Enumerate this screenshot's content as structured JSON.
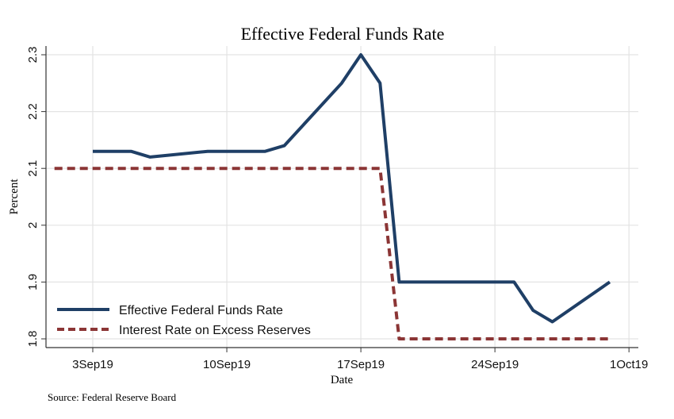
{
  "chart_data": {
    "type": "line",
    "title": "Effective Federal Funds Rate",
    "xlabel": "Date",
    "ylabel": "Percent",
    "source": "Source: Federal Reserve Board",
    "grid": true,
    "legend_position": "bottom-left",
    "ylim": [
      1.8,
      2.3
    ],
    "yticks": [
      1.8,
      1.9,
      2.0,
      2.1,
      2.2,
      2.3
    ],
    "ytick_labels": [
      "1.8",
      "1.9",
      "2",
      "2.1",
      "2.2",
      "2.3"
    ],
    "xlim_days": [
      -2,
      29
    ],
    "xticks_days": [
      0,
      7,
      14,
      21,
      28
    ],
    "xtick_labels": [
      "3Sep19",
      "10Sep19",
      "17Sep19",
      "24Sep19",
      "1Oct19"
    ],
    "x_unit_note": "days since 3Sep19",
    "series": [
      {
        "name": "Effective Federal Funds Rate",
        "color": "#1f3f66",
        "style": "solid",
        "x": [
          0,
          2,
          3,
          6,
          7,
          8,
          9,
          10,
          13,
          14,
          15,
          16,
          17,
          18,
          19,
          20,
          21,
          22,
          23,
          24,
          27
        ],
        "dates": [
          "3Sep19",
          "5Sep19",
          "6Sep19",
          "9Sep19",
          "10Sep19",
          "11Sep19",
          "12Sep19",
          "13Sep19",
          "16Sep19",
          "17Sep19",
          "18Sep19",
          "19Sep19",
          "20Sep19",
          "21Sep19",
          "22Sep19",
          "23Sep19",
          "24Sep19",
          "25Sep19",
          "26Sep19",
          "27Sep19",
          "30Sep19"
        ],
        "values": [
          2.13,
          2.13,
          2.12,
          2.13,
          2.13,
          2.13,
          2.13,
          2.14,
          2.25,
          2.3,
          2.25,
          1.9,
          1.9,
          1.9,
          1.9,
          1.9,
          1.9,
          1.9,
          1.85,
          1.83,
          1.9
        ]
      },
      {
        "name": "Interest Rate on Excess Reserves",
        "color": "#8b3535",
        "style": "dashed",
        "x": [
          -2,
          15,
          16,
          27
        ],
        "dates": [
          "1Sep19",
          "18Sep19",
          "19Sep19",
          "30Sep19"
        ],
        "values": [
          2.1,
          2.1,
          1.8,
          1.8
        ]
      }
    ]
  }
}
